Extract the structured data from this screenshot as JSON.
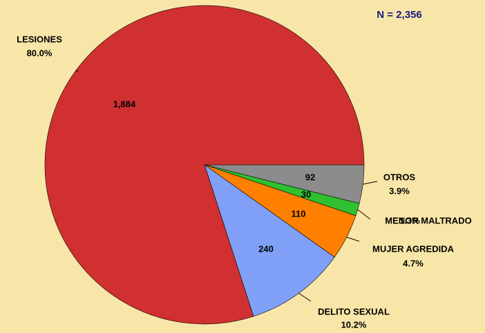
{
  "chart_data": {
    "type": "pie",
    "title": "N = 2,356",
    "categories": [
      "OTROS",
      "MENOR MALTRADO",
      "MUJER AGREDIDA",
      "DELITO SEXUAL",
      "LESIONES"
    ],
    "values": [
      92,
      30,
      110,
      240,
      1884
    ],
    "value_labels": [
      "92",
      "30",
      "110",
      "240",
      "1,884"
    ],
    "percent_labels": [
      "3.9%",
      "1.3%",
      "4.7%",
      "10.2%",
      "80.0%"
    ],
    "colors": [
      "#8c8c8c",
      "#30c030",
      "#ff8000",
      "#80a0f8",
      "#d03030"
    ]
  }
}
